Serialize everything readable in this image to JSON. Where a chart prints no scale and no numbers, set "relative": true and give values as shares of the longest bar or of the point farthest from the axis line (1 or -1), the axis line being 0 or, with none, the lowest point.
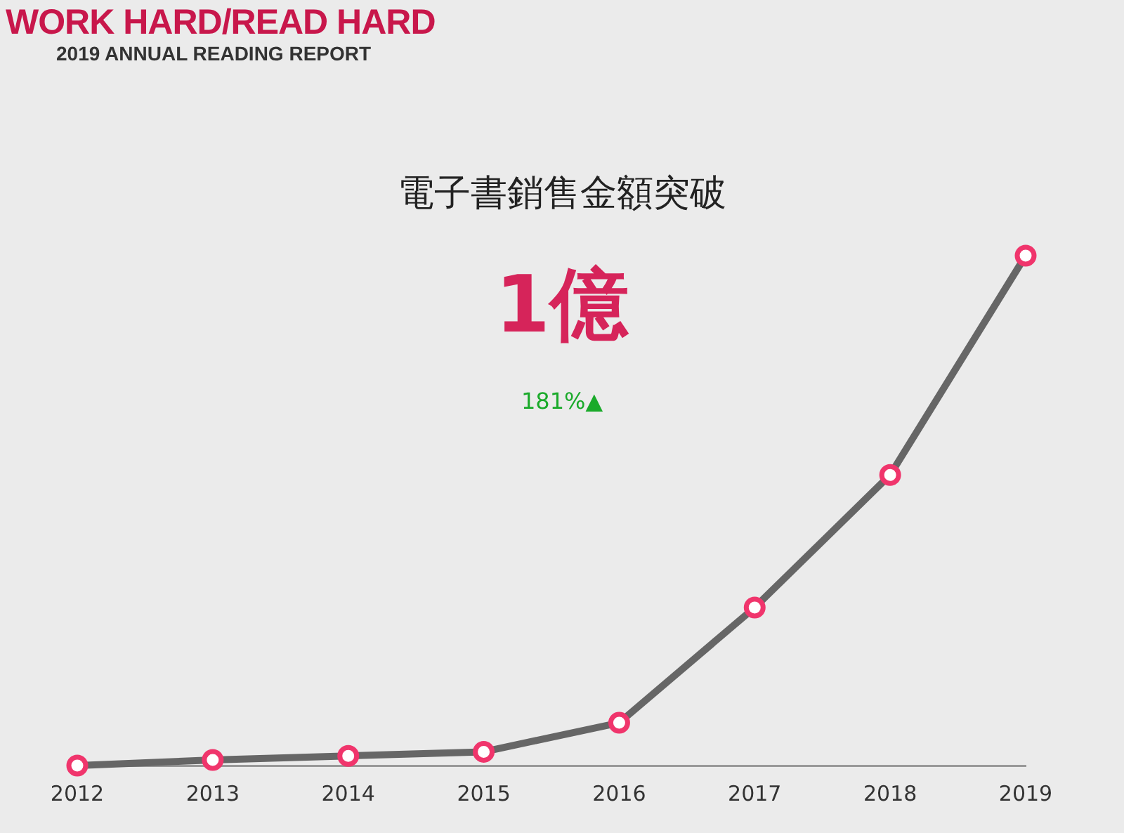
{
  "chart_data": {
    "type": "line",
    "title": "WORK HARD/READ HARD",
    "subtitle": "2019 ANNUAL READING REPORT",
    "annotations": [
      "電子書銷售金額突破",
      "1億",
      "181%▲"
    ],
    "relative": true,
    "categories": [
      "2012",
      "2013",
      "2014",
      "2015",
      "2016",
      "2017",
      "2018",
      "2019"
    ],
    "series": [
      {
        "color": "#666666",
        "values": [
          0,
          0.011,
          0.019,
          0.027,
          0.084,
          0.31,
          0.57,
          1
        ]
      }
    ],
    "marker": "circle",
    "line_style": "solid",
    "grid": false,
    "legend": false
  }
}
